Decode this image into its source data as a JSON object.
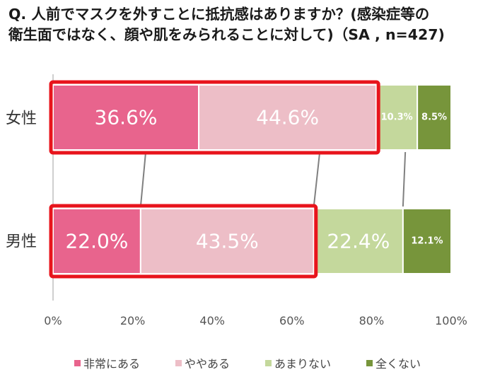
{
  "title_lines": [
    "Q. 人前でマスクを外すことに抵抗感はありますか？(感染症等の",
    "衛生面ではなく、顔や肌をみられることに対して)（SA , n=427)"
  ],
  "colors": {
    "非常にある": "#e8648d",
    "ややある": "#edbec7",
    "あまりない": "#c4d89c",
    "全くない": "#77953b",
    "highlight": "#e8141c",
    "axis": "#bfbfbf",
    "connector": "#808080"
  },
  "chart_data": {
    "type": "bar",
    "orientation": "horizontal",
    "stacked": true,
    "title": "Q. 人前でマスクを外すことに抵抗感はありますか？(感染症等の衛生面ではなく、顔や肌をみられることに対して)（SA , n=427)",
    "categories": [
      "女性",
      "男性"
    ],
    "series": [
      {
        "name": "非常にある",
        "values": [
          36.6,
          22.0
        ],
        "labels": [
          "36.6%",
          "22.0%"
        ]
      },
      {
        "name": "ややある",
        "values": [
          44.6,
          43.5
        ],
        "labels": [
          "44.6%",
          "43.5%"
        ]
      },
      {
        "name": "あまりない",
        "values": [
          10.3,
          22.4
        ],
        "labels": [
          "10.3%",
          "22.4%"
        ]
      },
      {
        "name": "全くない",
        "values": [
          8.5,
          12.1
        ],
        "labels": [
          "8.5%",
          "12.1%"
        ]
      }
    ],
    "xlim": [
      0,
      100
    ],
    "xticks": [
      "0%",
      "20%",
      "40%",
      "60%",
      "80%",
      "100%"
    ],
    "xlabel": "",
    "ylabel": "",
    "legend_position": "bottom",
    "annotations": "非常にある＋ややある の合計を赤枠で強調し、女性と男性を接続線で結ぶ"
  }
}
